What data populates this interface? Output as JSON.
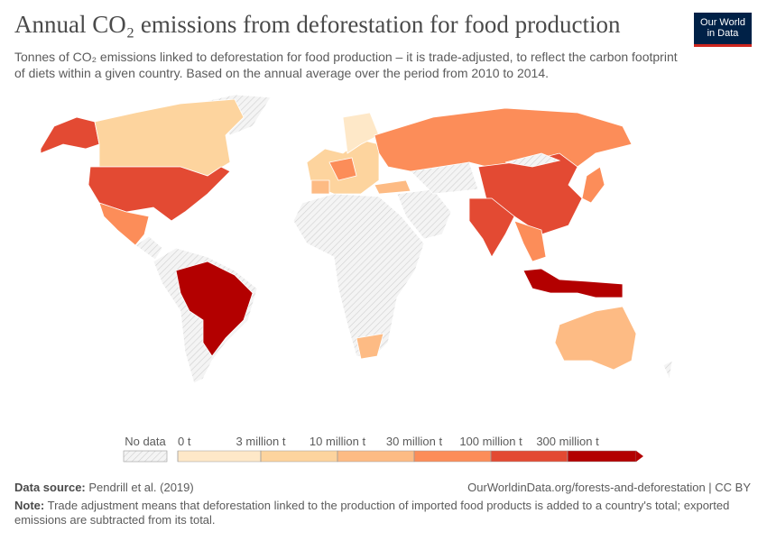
{
  "title": "Annual CO₂ emissions from deforestation for food production",
  "subtitle": "Tonnes of CO₂ emissions linked to deforestation for food production – it is trade-adjusted, to reflect the carbon footprint of diets within a given country. Based on the annual average over the period from 2010 to 2014.",
  "logo": {
    "line1": "Our World",
    "line2": "in Data"
  },
  "legend": {
    "no_data": "No data",
    "ticks": [
      {
        "value": 0,
        "label": "0 t"
      },
      {
        "value": 3000000,
        "label": "3 million t"
      },
      {
        "value": 10000000,
        "label": "10 million t"
      },
      {
        "value": 30000000,
        "label": "30 million t"
      },
      {
        "value": 100000000,
        "label": "100 million t"
      },
      {
        "value": 300000000,
        "label": "300 million t"
      }
    ],
    "colors": [
      "#fee8c8",
      "#fdd49e",
      "#fdbb84",
      "#fc8d59",
      "#e34a33",
      "#b30000"
    ]
  },
  "source": {
    "label": "Data source:",
    "text": "Pendrill et al. (2019)"
  },
  "url": "OurWorldinData.org/forests-and-deforestation | CC BY",
  "note": {
    "label": "Note:",
    "text": "Trade adjustment means that deforestation linked to the production of imported food products is added to a country's total; exported emissions are subtracted from its total."
  }
}
